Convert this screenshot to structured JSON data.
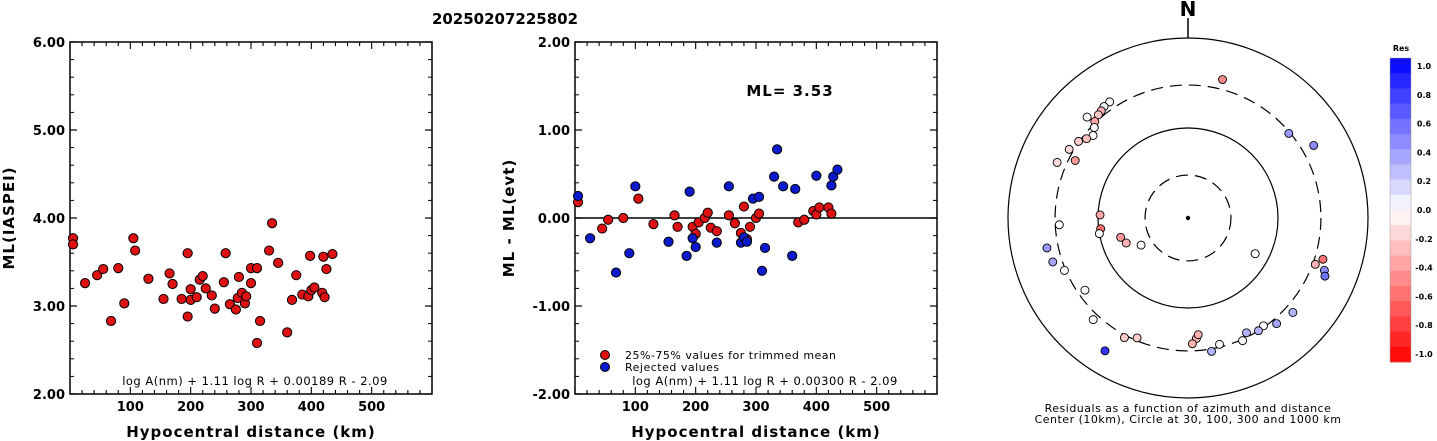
{
  "title": "20250207225802",
  "chart_data": [
    {
      "type": "scatter",
      "xlabel": "Hypocentral distance (km)",
      "ylabel": "ML(IASPEI)",
      "xlim": [
        0,
        600
      ],
      "ylim": [
        2.0,
        6.0
      ],
      "xticks": [
        "100",
        "200",
        "300",
        "400",
        "500"
      ],
      "yticks": [
        "2.00",
        "3.00",
        "4.00",
        "5.00",
        "6.00"
      ],
      "formula": "log A(nm) + 1.11 log R + 0.00189 R - 2.09",
      "point_color": "#dd1111",
      "points": [
        [
          5,
          3.77
        ],
        [
          5,
          3.7
        ],
        [
          25,
          3.26
        ],
        [
          45,
          3.35
        ],
        [
          55,
          3.42
        ],
        [
          68,
          2.83
        ],
        [
          80,
          3.43
        ],
        [
          90,
          3.03
        ],
        [
          105,
          3.77
        ],
        [
          108,
          3.63
        ],
        [
          130,
          3.31
        ],
        [
          155,
          3.08
        ],
        [
          165,
          3.37
        ],
        [
          170,
          3.25
        ],
        [
          185,
          3.08
        ],
        [
          195,
          3.6
        ],
        [
          195,
          2.88
        ],
        [
          200,
          3.07
        ],
        [
          200,
          3.19
        ],
        [
          210,
          3.1
        ],
        [
          215,
          3.3
        ],
        [
          220,
          3.34
        ],
        [
          225,
          3.2
        ],
        [
          235,
          3.12
        ],
        [
          240,
          2.97
        ],
        [
          255,
          3.27
        ],
        [
          258,
          3.6
        ],
        [
          265,
          3.02
        ],
        [
          275,
          2.96
        ],
        [
          278,
          3.09
        ],
        [
          280,
          3.33
        ],
        [
          285,
          3.15
        ],
        [
          290,
          3.03
        ],
        [
          292,
          3.11
        ],
        [
          300,
          3.26
        ],
        [
          300,
          3.43
        ],
        [
          310,
          3.43
        ],
        [
          310,
          2.58
        ],
        [
          315,
          2.83
        ],
        [
          330,
          3.63
        ],
        [
          335,
          3.94
        ],
        [
          345,
          3.49
        ],
        [
          360,
          2.7
        ],
        [
          368,
          3.07
        ],
        [
          375,
          3.35
        ],
        [
          385,
          3.13
        ],
        [
          395,
          3.11
        ],
        [
          398,
          3.57
        ],
        [
          400,
          3.18
        ],
        [
          405,
          3.21
        ],
        [
          418,
          3.15
        ],
        [
          420,
          3.56
        ],
        [
          422,
          3.1
        ],
        [
          425,
          3.42
        ],
        [
          435,
          3.59
        ]
      ]
    },
    {
      "type": "scatter",
      "xlabel": "Hypocentral distance (km)",
      "ylabel": "ML - ML(evt)",
      "xlim": [
        0,
        600
      ],
      "ylim": [
        -2.0,
        2.0
      ],
      "xticks": [
        "100",
        "200",
        "300",
        "400",
        "500"
      ],
      "yticks": [
        "-2.00",
        "-1.00",
        "0.00",
        "1.00",
        "2.00"
      ],
      "annotation": "ML= 3.53",
      "formula": "log A(nm) + 1.11 log R + 0.00300 R - 2.09",
      "legend": [
        {
          "label": "25%-75% values for trimmed mean",
          "color": "#dd1111"
        },
        {
          "label": "Rejected values",
          "color": "#0a1acc"
        }
      ],
      "trimmed": [
        [
          5,
          0.18
        ],
        [
          45,
          -0.12
        ],
        [
          55,
          -0.02
        ],
        [
          80,
          0.0
        ],
        [
          105,
          0.22
        ],
        [
          130,
          -0.07
        ],
        [
          165,
          0.03
        ],
        [
          170,
          -0.1
        ],
        [
          195,
          -0.1
        ],
        [
          200,
          -0.18
        ],
        [
          205,
          -0.05
        ],
        [
          215,
          0.0
        ],
        [
          220,
          0.06
        ],
        [
          225,
          -0.11
        ],
        [
          235,
          -0.15
        ],
        [
          255,
          0.03
        ],
        [
          265,
          -0.06
        ],
        [
          275,
          -0.17
        ],
        [
          280,
          0.13
        ],
        [
          285,
          -0.24
        ],
        [
          290,
          -0.1
        ],
        [
          300,
          0.0
        ],
        [
          305,
          0.05
        ],
        [
          370,
          -0.05
        ],
        [
          380,
          -0.02
        ],
        [
          395,
          0.08
        ],
        [
          400,
          0.04
        ],
        [
          405,
          0.12
        ],
        [
          420,
          0.12
        ],
        [
          425,
          0.05
        ]
      ],
      "rejected": [
        [
          5,
          0.25
        ],
        [
          25,
          -0.23
        ],
        [
          68,
          -0.62
        ],
        [
          90,
          -0.4
        ],
        [
          100,
          0.36
        ],
        [
          155,
          -0.27
        ],
        [
          185,
          -0.43
        ],
        [
          190,
          0.3
        ],
        [
          195,
          -0.23
        ],
        [
          200,
          -0.33
        ],
        [
          235,
          -0.28
        ],
        [
          255,
          0.36
        ],
        [
          275,
          -0.28
        ],
        [
          280,
          -0.22
        ],
        [
          285,
          -0.27
        ],
        [
          295,
          0.22
        ],
        [
          305,
          0.24
        ],
        [
          310,
          -0.6
        ],
        [
          315,
          -0.34
        ],
        [
          330,
          0.47
        ],
        [
          335,
          0.78
        ],
        [
          345,
          0.36
        ],
        [
          360,
          -0.43
        ],
        [
          365,
          0.33
        ],
        [
          400,
          0.48
        ],
        [
          425,
          0.37
        ],
        [
          428,
          0.47
        ],
        [
          435,
          0.55
        ]
      ]
    },
    {
      "type": "polar-scatter",
      "north_label": "N",
      "caption_line1": "Residuals as a function of azimuth and distance",
      "caption_line2": "Center (10km), Circle at 30, 100, 300 and 1000 km",
      "rings": [
        {
          "km": 30,
          "style": "dashed"
        },
        {
          "km": 100,
          "style": "solid"
        },
        {
          "km": 300,
          "style": "dashed"
        },
        {
          "km": 1000,
          "style": "solid"
        }
      ],
      "colorbar": {
        "title": "Res",
        "ticks": [
          "1.0",
          "0.8",
          "0.6",
          "0.4",
          "0.2",
          "0.0",
          "-0.2",
          "-0.4",
          "-0.6",
          "-0.8",
          "-1.0"
        ],
        "max_color": "#0000ff",
        "min_color": "#ff0000"
      },
      "points": [
        {
          "az": 315,
          "km": 385,
          "res": 0.0
        },
        {
          "az": 14,
          "km": 385,
          "res": -0.45
        },
        {
          "az": 326,
          "km": 360,
          "res": 0.0
        },
        {
          "az": 323,
          "km": 355,
          "res": 0.05
        },
        {
          "az": 321,
          "km": 340,
          "res": -0.3
        },
        {
          "az": 319,
          "km": 330,
          "res": -0.2
        },
        {
          "az": 316,
          "km": 310,
          "res": -0.35
        },
        {
          "az": 314,
          "km": 280,
          "res": 0.0
        },
        {
          "az": 311,
          "km": 250,
          "res": 0.0
        },
        {
          "az": 308,
          "km": 270,
          "res": -0.25
        },
        {
          "az": 305,
          "km": 305,
          "res": -0.2
        },
        {
          "az": 300,
          "km": 335,
          "res": -0.15
        },
        {
          "az": 297,
          "km": 255,
          "res": -0.4
        },
        {
          "az": 293,
          "km": 380,
          "res": -0.15
        },
        {
          "az": 50,
          "km": 290,
          "res": 0.4
        },
        {
          "az": 60,
          "km": 410,
          "res": 0.45
        },
        {
          "az": 258,
          "km": 400,
          "res": 0.4
        },
        {
          "az": 267,
          "km": 270,
          "res": 0.0
        },
        {
          "az": 272,
          "km": 95,
          "res": -0.35
        },
        {
          "az": 263,
          "km": 95,
          "res": -0.55
        },
        {
          "az": 252,
          "km": 380,
          "res": 0.35
        },
        {
          "az": 247,
          "km": 310,
          "res": 0.0
        },
        {
          "az": 235,
          "km": 250,
          "res": 0.0
        },
        {
          "az": 223,
          "km": 350,
          "res": 0.0
        },
        {
          "az": 212,
          "km": 550,
          "res": 0.8
        },
        {
          "az": 208,
          "km": 320,
          "res": -0.2
        },
        {
          "az": 203,
          "km": 280,
          "res": -0.2
        },
        {
          "az": 260,
          "km": 100,
          "res": 0.0
        },
        {
          "az": 248,
          "km": 55,
          "res": -0.3
        },
        {
          "az": 240,
          "km": 40,
          "res": 0.0
        },
        {
          "az": 254,
          "km": 60,
          "res": -0.4
        },
        {
          "az": 107,
          "km": 370,
          "res": -0.55
        },
        {
          "az": 111,
          "km": 420,
          "res": 0.45
        },
        {
          "az": 113,
          "km": 450,
          "res": 0.55
        },
        {
          "az": 132,
          "km": 370,
          "res": 0.3
        },
        {
          "az": 140,
          "km": 340,
          "res": 0.35
        },
        {
          "az": 145,
          "km": 290,
          "res": 0.0
        },
        {
          "az": 148,
          "km": 300,
          "res": 0.3
        },
        {
          "az": 153,
          "km": 270,
          "res": 0.3
        },
        {
          "az": 156,
          "km": 310,
          "res": 0.0
        },
        {
          "az": 166,
          "km": 280,
          "res": 0.0
        },
        {
          "az": 170,
          "km": 320,
          "res": 0.3
        },
        {
          "az": 176,
          "km": 220,
          "res": -0.3
        },
        {
          "az": 178,
          "km": 250,
          "res": -0.3
        },
        {
          "az": 175,
          "km": 200,
          "res": -0.3
        },
        {
          "az": 118,
          "km": 70,
          "res": 0.0
        },
        {
          "az": 110,
          "km": 320,
          "res": -0.3
        }
      ]
    }
  ]
}
